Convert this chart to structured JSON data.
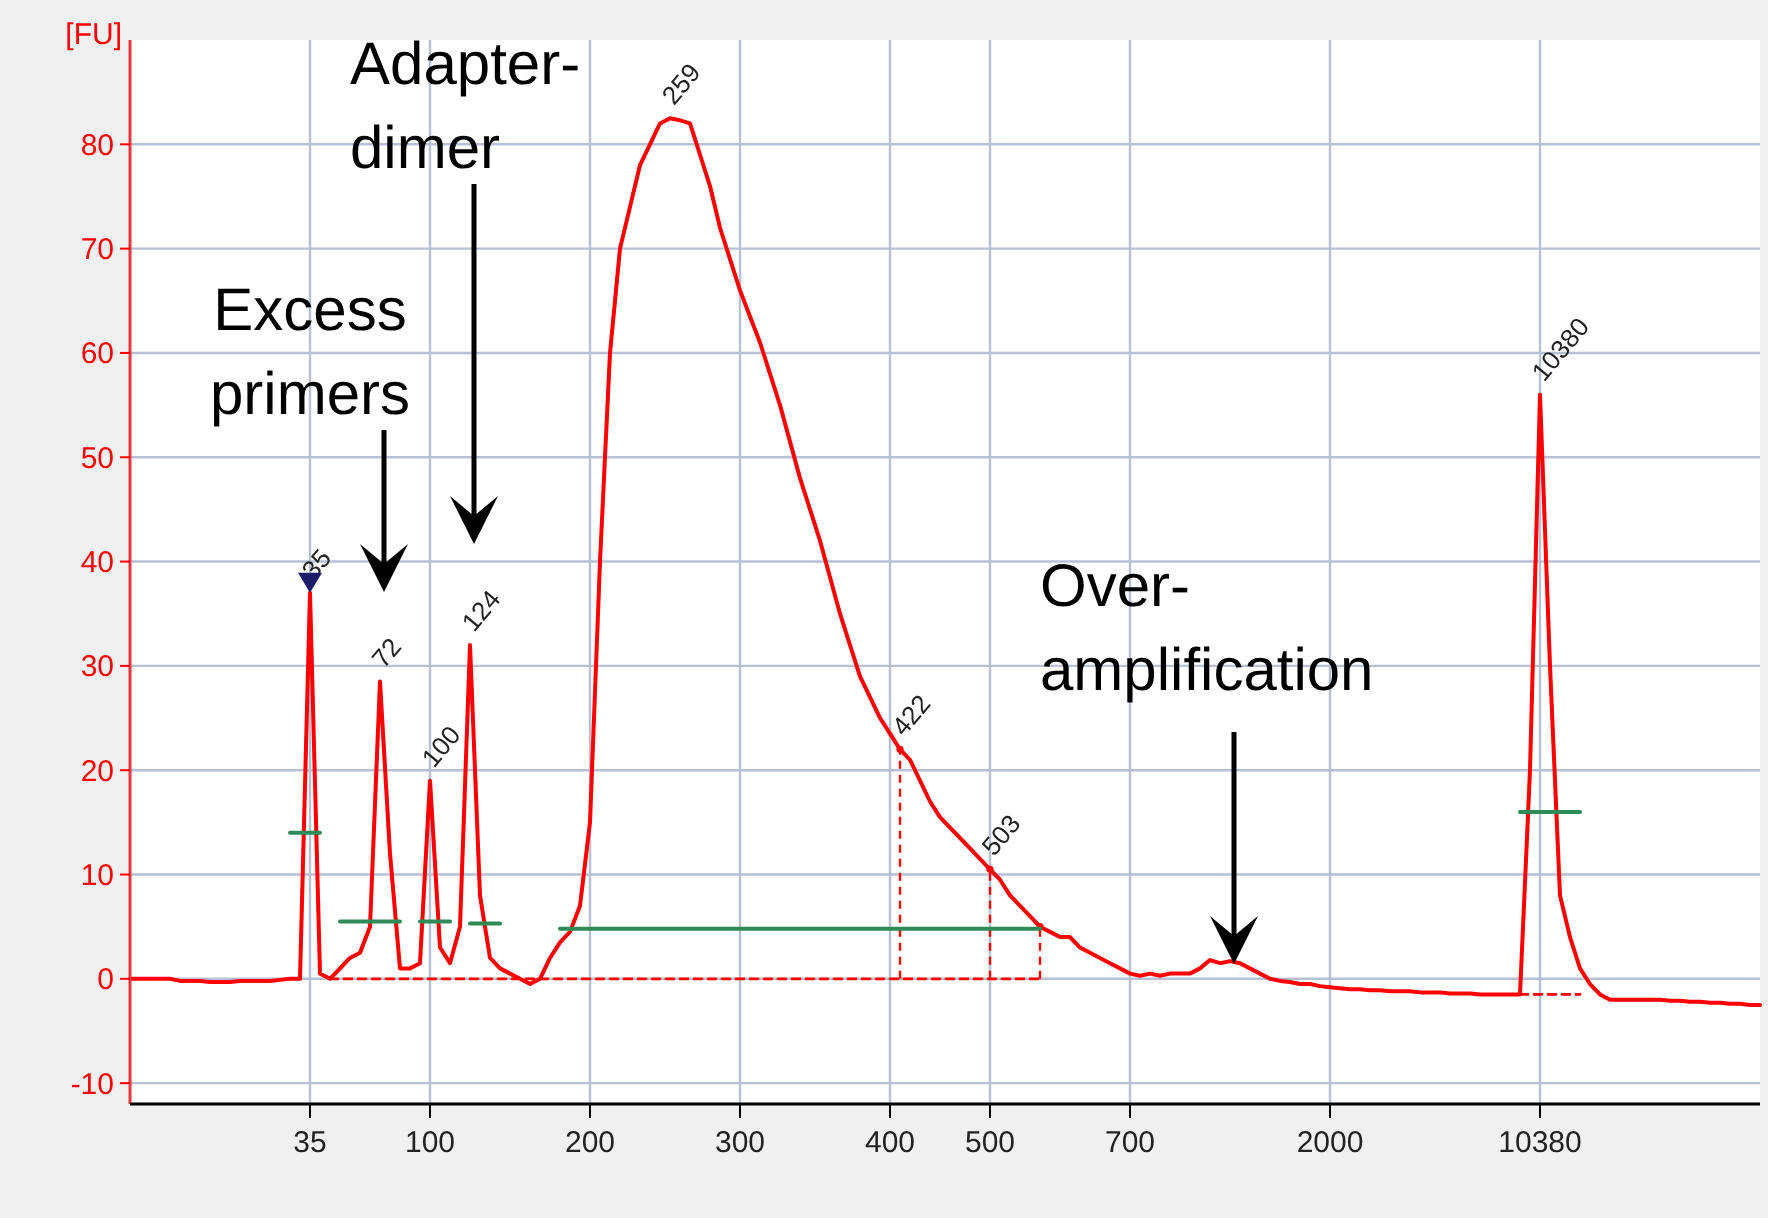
{
  "chart_data": {
    "type": "line",
    "ylabel": "[FU]",
    "ylim": [
      -12,
      90
    ],
    "categories": [
      null,
      null,
      null,
      null,
      null,
      null,
      null,
      null,
      null,
      null,
      null,
      null,
      null,
      null,
      null,
      null,
      null,
      null,
      "35",
      null,
      null,
      null,
      null,
      null,
      null,
      null,
      null,
      null,
      null,
      null,
      "100",
      null,
      null,
      null,
      null,
      null,
      null,
      null,
      null,
      null,
      null,
      null,
      null,
      null,
      null,
      null,
      "200",
      null,
      null,
      null,
      null,
      null,
      null,
      null,
      null,
      null,
      null,
      null,
      null,
      null,
      null,
      "300",
      null,
      null,
      null,
      null,
      null,
      null,
      null,
      null,
      null,
      null,
      null,
      null,
      null,
      null,
      "400",
      null,
      null,
      null,
      null,
      null,
      null,
      null,
      null,
      null,
      "500",
      null,
      null,
      null,
      null,
      null,
      null,
      null,
      null,
      null,
      null,
      null,
      null,
      null,
      "700",
      null,
      null,
      null,
      null,
      null,
      null,
      null,
      null,
      null,
      null,
      null,
      null,
      null,
      null,
      null,
      null,
      null,
      null,
      null,
      "2000",
      null,
      null,
      null,
      null,
      null,
      null,
      null,
      null,
      null,
      null,
      null,
      null,
      null,
      null,
      null,
      null,
      null,
      null,
      null,
      null,
      "10380",
      null,
      null,
      null,
      null,
      null,
      null,
      null,
      null,
      null,
      null,
      null,
      null,
      null,
      null,
      null,
      null,
      null,
      null,
      null,
      null,
      null,
      null
    ],
    "yticks": [
      -10,
      0,
      10,
      20,
      30,
      40,
      50,
      60,
      70,
      80
    ],
    "grid": true,
    "marker": "none",
    "series": [
      {
        "color": "#ff0000",
        "line_style": "solid",
        "values": [
          0,
          0,
          0,
          0,
          0,
          -0.2,
          -0.2,
          -0.2,
          -0.3,
          -0.3,
          -0.3,
          -0.2,
          -0.2,
          -0.2,
          -0.2,
          -0.1,
          0,
          0,
          37,
          0.5,
          0,
          1,
          2,
          2.5,
          5,
          28.5,
          12,
          1,
          1,
          1.5,
          19,
          3,
          1.5,
          5,
          32,
          8,
          2,
          1,
          0.5,
          0,
          -0.5,
          0,
          2,
          3.5,
          4.5,
          7,
          15,
          40,
          60,
          70,
          74,
          78,
          80,
          82,
          82.5,
          82.3,
          82,
          79,
          76,
          72,
          69,
          66,
          63.5,
          61,
          58,
          55,
          51.5,
          48,
          45,
          42,
          38.5,
          35,
          32,
          29,
          27,
          25,
          23.5,
          22,
          21,
          19,
          17,
          15.5,
          14.5,
          13.5,
          12.5,
          11.5,
          10.5,
          9.5,
          8,
          7,
          6,
          5,
          4.5,
          4,
          4,
          3,
          2.5,
          2,
          1.5,
          1,
          0.5,
          0.3,
          0.5,
          0.3,
          0.5,
          0.5,
          0.5,
          1,
          1.8,
          1.5,
          1.7,
          1.5,
          1,
          0.5,
          0,
          -0.2,
          -0.3,
          -0.5,
          -0.5,
          -0.7,
          -0.8,
          -0.9,
          -1,
          -1,
          -1.1,
          -1.1,
          -1.2,
          -1.2,
          -1.2,
          -1.3,
          -1.3,
          -1.3,
          -1.4,
          -1.4,
          -1.4,
          -1.5,
          -1.5,
          -1.5,
          -1.5,
          -1.5,
          20,
          56,
          30,
          8,
          4,
          1,
          -0.5,
          -1.5,
          -2,
          -2,
          -2,
          -2,
          -2,
          -2,
          -2.1,
          -2.1,
          -2.2,
          -2.2,
          -2.3,
          -2.3,
          -2.4,
          -2.4,
          -2.5,
          -2.5
        ]
      },
      {
        "color": "#2e8b57",
        "line_style": "solid",
        "values": [
          null,
          null,
          null,
          null,
          null,
          null,
          null,
          null,
          null,
          null,
          null,
          null,
          null,
          null,
          null,
          null,
          14,
          14,
          14,
          14,
          null,
          5.5,
          5.5,
          5.5,
          5.5,
          5.5,
          5.5,
          5.5,
          null,
          5.5,
          5.5,
          5.5,
          5.5,
          null,
          5.3,
          5.3,
          5.3,
          5.3,
          null,
          null,
          null,
          null,
          null,
          4.8,
          4.8,
          4.8,
          4.8,
          4.8,
          4.8,
          4.8,
          4.8,
          4.8,
          4.8,
          4.8,
          4.8,
          4.8,
          4.8,
          4.8,
          4.8,
          4.8,
          4.8,
          4.8,
          4.8,
          4.8,
          4.8,
          4.8,
          4.8,
          4.8,
          4.8,
          4.8,
          4.8,
          4.8,
          4.8,
          4.8,
          4.8,
          4.8,
          4.8,
          4.8,
          4.8,
          4.8,
          4.8,
          4.8,
          4.8,
          4.8,
          4.8,
          4.8,
          4.8,
          4.8,
          4.8,
          4.8,
          4.8,
          4.8,
          null,
          null,
          null,
          null,
          null,
          null,
          null,
          null,
          null,
          null,
          null,
          null,
          null,
          null,
          null,
          null,
          null,
          null,
          null,
          null,
          null,
          null,
          null,
          null,
          null,
          null,
          null,
          null,
          null,
          null,
          null,
          null,
          null,
          null,
          null,
          null,
          null,
          null,
          null,
          null,
          null,
          null,
          null,
          null,
          null,
          null,
          null,
          16,
          16,
          16,
          16,
          16,
          16,
          16,
          null,
          null,
          null,
          null,
          null,
          null,
          null,
          null,
          null,
          null,
          null,
          null,
          null,
          null,
          null,
          null,
          null,
          null
        ]
      },
      {
        "color": "#ff0000",
        "line_style": "dashed",
        "values": [
          null,
          null,
          null,
          null,
          null,
          null,
          null,
          null,
          null,
          null,
          null,
          null,
          null,
          null,
          null,
          null,
          null,
          null,
          null,
          null,
          0,
          0,
          0,
          0,
          0,
          0,
          0,
          0,
          0,
          0,
          0,
          0,
          0,
          0,
          0,
          0,
          0,
          0,
          0,
          0,
          0,
          0,
          0,
          0,
          0,
          0,
          0,
          0,
          0,
          0,
          0,
          0,
          0,
          0,
          0,
          0,
          0,
          0,
          0,
          0,
          0,
          0,
          0,
          0,
          0,
          0,
          0,
          0,
          0,
          0,
          0,
          0,
          0,
          0,
          0,
          0,
          0,
          0,
          0,
          0,
          0,
          0,
          0,
          0,
          0,
          0,
          0,
          0,
          0,
          0,
          0,
          0,
          null,
          null,
          null,
          null,
          null,
          null,
          null,
          null,
          null,
          null,
          null,
          null,
          null,
          null,
          null,
          null,
          null,
          null,
          null,
          null,
          null,
          null,
          null,
          null,
          null,
          null,
          null,
          null,
          null,
          null,
          null,
          null,
          null,
          null,
          null,
          null,
          null,
          null,
          null,
          null,
          null,
          null,
          null,
          null,
          null,
          null,
          null,
          -1.5,
          -1.5,
          -1.5,
          -1.5,
          -1.5,
          -1.5,
          -1.5,
          null,
          null,
          null,
          null,
          null,
          null,
          null,
          null,
          null,
          null,
          null,
          null,
          null,
          null,
          null,
          null,
          null,
          null
        ]
      },
      {
        "type": "lollipop",
        "marker": "circle",
        "color": "#ff0000",
        "line_style": "dashed",
        "values": [
          null,
          null,
          null,
          null,
          null,
          null,
          null,
          null,
          null,
          null,
          null,
          null,
          null,
          null,
          null,
          null,
          null,
          null,
          null,
          null,
          null,
          null,
          null,
          null,
          null,
          null,
          null,
          null,
          null,
          null,
          null,
          null,
          null,
          null,
          null,
          null,
          null,
          null,
          null,
          null,
          null,
          null,
          null,
          null,
          null,
          null,
          null,
          null,
          null,
          null,
          null,
          null,
          null,
          null,
          null,
          null,
          null,
          null,
          null,
          null,
          null,
          null,
          null,
          null,
          null,
          null,
          null,
          null,
          null,
          null,
          null,
          null,
          null,
          null,
          null,
          null,
          null,
          22,
          null,
          null,
          null,
          null,
          null,
          null,
          null,
          null,
          10.5,
          null,
          null,
          null,
          null,
          5,
          null,
          null,
          null,
          null,
          null,
          null,
          null,
          null,
          null,
          null,
          null,
          null,
          null,
          null,
          null,
          null,
          null,
          null,
          null,
          null,
          null,
          null,
          null,
          null,
          null,
          null,
          null,
          null,
          null,
          null,
          null,
          null,
          null,
          null,
          null,
          null,
          null,
          null,
          null,
          null,
          null,
          null,
          null,
          null,
          null,
          null,
          null,
          null,
          null,
          null,
          null,
          null,
          null,
          null,
          null,
          null,
          null,
          null,
          null,
          null,
          null,
          null,
          null,
          null,
          null,
          null,
          null,
          null,
          null,
          null,
          null,
          null
        ]
      }
    ],
    "annotations": [
      {
        "text": "35",
        "x": "35",
        "y": 37
      },
      {
        "text": "72",
        "y": 28.5
      },
      {
        "text": "100",
        "x": "100",
        "y": 19
      },
      {
        "text": "124",
        "y": 32
      },
      {
        "text": "259",
        "y": 82.5
      },
      {
        "text": "422",
        "y": 22
      },
      {
        "text": "503",
        "y": 10.5
      },
      {
        "text": "10380",
        "x": "10380",
        "y": 56
      },
      "Excess primers",
      "Adapter-dimer",
      "Over-amplification"
    ]
  }
}
